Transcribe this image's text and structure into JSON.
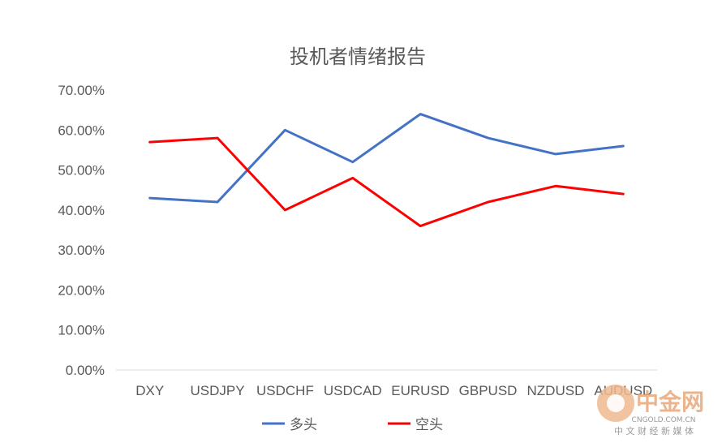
{
  "chart_data": {
    "type": "line",
    "title": "投机者情绪报告",
    "xlabel": "",
    "ylabel": "",
    "categories": [
      "DXY",
      "USDJPY",
      "USDCHF",
      "USDCAD",
      "EURUSD",
      "GBPUSD",
      "NZDUSD",
      "AUDUSD"
    ],
    "ylim": [
      0,
      70
    ],
    "yticks": [
      "0.00%",
      "10.00%",
      "20.00%",
      "30.00%",
      "40.00%",
      "50.00%",
      "60.00%",
      "70.00%"
    ],
    "grid": false,
    "legend_position": "bottom",
    "series": [
      {
        "name": "多头",
        "color": "#4472c4",
        "values": [
          43,
          42,
          60,
          52,
          64,
          58,
          54,
          56
        ]
      },
      {
        "name": "空头",
        "color": "#ff0000",
        "values": [
          57,
          58,
          40,
          48,
          36,
          42,
          46,
          44
        ]
      }
    ]
  },
  "watermark": {
    "brand": "中金网",
    "domain": "CNGOLD.COM.CN",
    "tagline": "中 文 财 经 新 媒 体",
    "color": "#e8a878"
  }
}
